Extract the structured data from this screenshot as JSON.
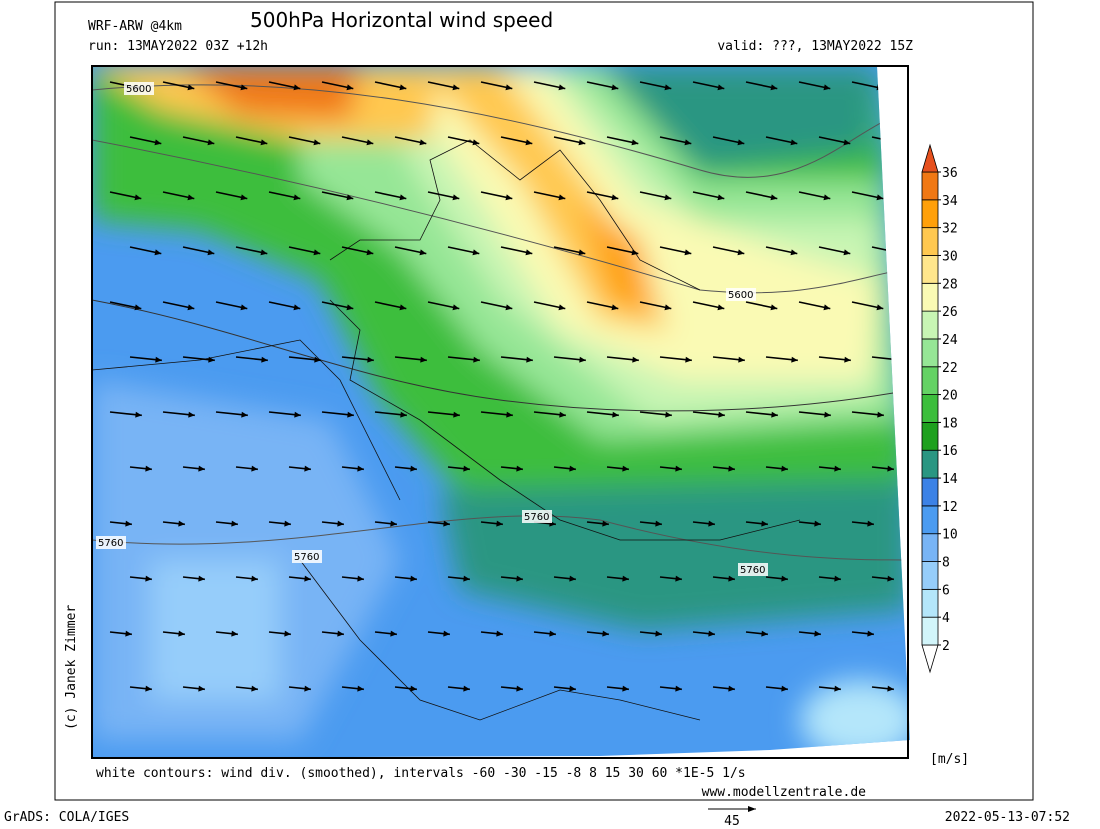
{
  "header": {
    "model": "WRF-ARW @4km",
    "title": "500hPa Horizontal wind speed",
    "run": "run: 13MAY2022 03Z +12h",
    "valid": "valid: ???, 13MAY2022 15Z"
  },
  "colorbar": {
    "levels": [
      2,
      4,
      6,
      8,
      10,
      12,
      14,
      16,
      18,
      20,
      22,
      24,
      26,
      28,
      30,
      32,
      34,
      36
    ],
    "colors": [
      "#ffffff",
      "#d2f5fa",
      "#b4e6fa",
      "#96cdfa",
      "#78b4f5",
      "#4b9bf0",
      "#3c82e6",
      "#2a9682",
      "#1ea01e",
      "#3cbe3c",
      "#64d264",
      "#96e696",
      "#c8f5b4",
      "#fafab4",
      "#ffe68c",
      "#ffc850",
      "#ffa00a",
      "#f07814",
      "#e6501e"
    ],
    "unit": "[m/s]"
  },
  "contour_labels": [
    "5600",
    "5600",
    "5760",
    "5760",
    "5760",
    "5760"
  ],
  "footer": {
    "note": "white contours: wind div. (smoothed), intervals -60 -30 -15 -8 8 15 30 60 *1E-5 1/s",
    "site": "www.modellzentrale.de",
    "software": "GrADS: COLA/IGES",
    "timestamp": "2022-05-13-07:52",
    "copyright": "(c) Janek Zimmer",
    "ref_vector": "45"
  }
}
